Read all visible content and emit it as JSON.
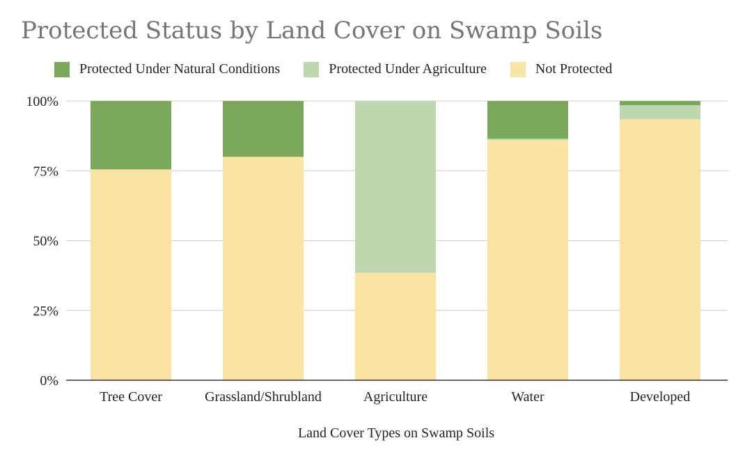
{
  "chart_data": {
    "type": "bar",
    "stacked": true,
    "title": "Protected Status by Land Cover on Swamp Soils",
    "xlabel": "Land Cover Types on Swamp Soils",
    "ylabel": "",
    "ylim": [
      0,
      100
    ],
    "yticks": [
      "0%",
      "25%",
      "50%",
      "75%",
      "100%"
    ],
    "ytick_values": [
      0,
      25,
      50,
      75,
      100
    ],
    "grid": true,
    "legend_position": "top",
    "categories": [
      "Tree Cover",
      "Grassland/Shrubland",
      "Agriculture",
      "Water",
      "Developed"
    ],
    "series": [
      {
        "name": "Not Protected",
        "color": "#f9e4a4",
        "values": [
          75.5,
          80,
          38.5,
          86,
          93.5
        ]
      },
      {
        "name": "Protected Under Agriculture",
        "color": "#bfd7ae",
        "values": [
          0,
          0,
          61.5,
          0.5,
          5
        ]
      },
      {
        "name": "Protected Under Natural Conditions",
        "color": "#7ba75a",
        "values": [
          24.5,
          20,
          0,
          13.5,
          1.5
        ]
      }
    ],
    "legend_order": [
      "Protected Under Natural Conditions",
      "Protected Under Agriculture",
      "Not Protected"
    ]
  }
}
